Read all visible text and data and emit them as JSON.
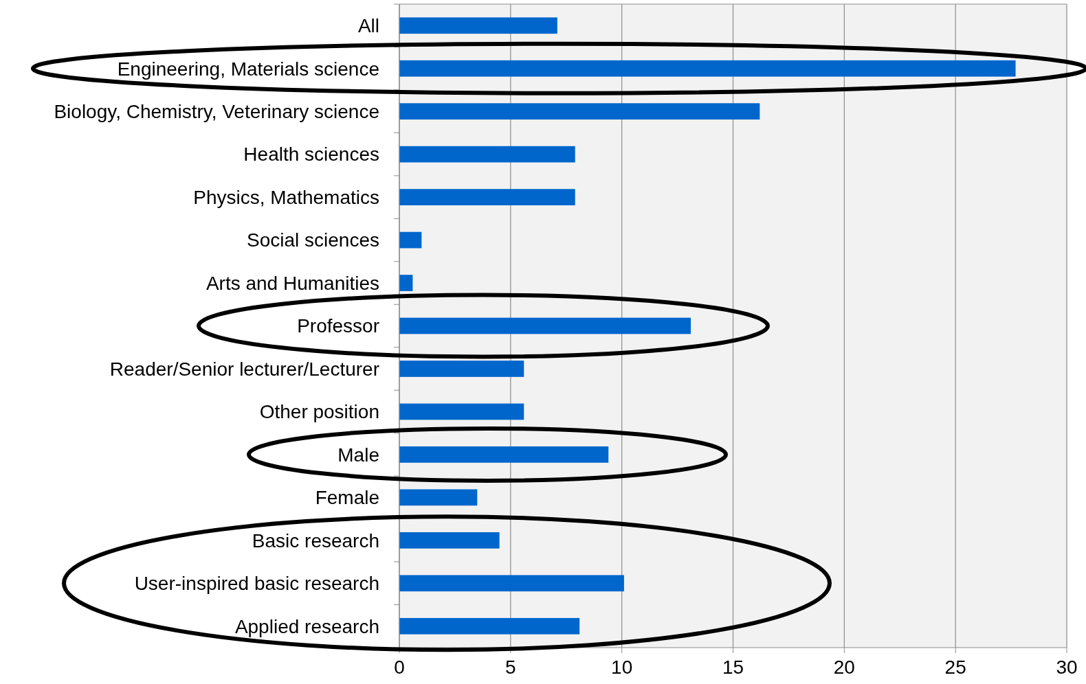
{
  "chart_data": {
    "type": "bar",
    "orientation": "horizontal",
    "categories": [
      "All",
      "Engineering, Materials science",
      "Biology, Chemistry, Veterinary science",
      "Health sciences",
      "Physics, Mathematics",
      "Social sciences",
      "Arts and Humanities",
      "Professor",
      "Reader/Senior lecturer/Lecturer",
      "Other position",
      "Male",
      "Female",
      "Basic research",
      "User-inspired basic research",
      "Applied research"
    ],
    "values": [
      7.1,
      27.7,
      16.2,
      7.9,
      7.9,
      1.0,
      0.6,
      13.1,
      5.6,
      5.6,
      9.4,
      3.5,
      4.5,
      10.1,
      8.1
    ],
    "color": "#0066cc",
    "xlim": [
      0,
      30
    ],
    "xticks": [
      0,
      5,
      10,
      15,
      20,
      25,
      30
    ],
    "grid": "x"
  }
}
